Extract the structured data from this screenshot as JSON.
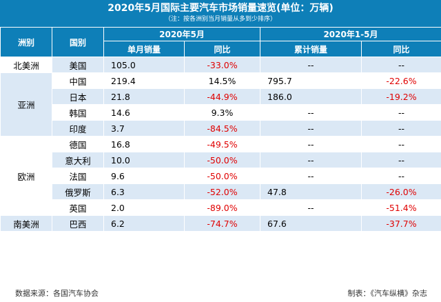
{
  "title": "2020年5月国际主要汽车市场销量速览(单位：万辆)",
  "subtitle": "（注：按各洲别当月销量从多到少排序）",
  "headers": {
    "continent": "洲别",
    "country": "国别",
    "period_month": "2020年5月",
    "period_ytd": "2020年1-5月",
    "month_sales": "单月销量",
    "month_yoy": "同比",
    "ytd_sales": "累计销量",
    "ytd_yoy": "同比"
  },
  "continents": {
    "north_america": "北美洲",
    "asia": "亚洲",
    "europe": "欧洲",
    "south_america": "南美洲"
  },
  "rows": [
    {
      "country": "美国",
      "month_sales": "105.0",
      "month_yoy": "-33.0%",
      "ytd_sales": "--",
      "ytd_yoy": "--"
    },
    {
      "country": "中国",
      "month_sales": "219.4",
      "month_yoy": "14.5%",
      "ytd_sales": "795.7",
      "ytd_yoy": "-22.6%"
    },
    {
      "country": "日本",
      "month_sales": "21.8",
      "month_yoy": "-44.9%",
      "ytd_sales": "186.0",
      "ytd_yoy": "-19.2%"
    },
    {
      "country": "韩国",
      "month_sales": "14.6",
      "month_yoy": "9.3%",
      "ytd_sales": "--",
      "ytd_yoy": "--"
    },
    {
      "country": "印度",
      "month_sales": "3.7",
      "month_yoy": "-84.5%",
      "ytd_sales": "--",
      "ytd_yoy": "--"
    },
    {
      "country": "德国",
      "month_sales": "16.8",
      "month_yoy": "-49.5%",
      "ytd_sales": "--",
      "ytd_yoy": "--"
    },
    {
      "country": "意大利",
      "month_sales": "10.0",
      "month_yoy": "-50.0%",
      "ytd_sales": "--",
      "ytd_yoy": "--"
    },
    {
      "country": "法国",
      "month_sales": "9.6",
      "month_yoy": "-50.0%",
      "ytd_sales": "--",
      "ytd_yoy": "--"
    },
    {
      "country": "俄罗斯",
      "month_sales": "6.3",
      "month_yoy": "-52.0%",
      "ytd_sales": "47.8",
      "ytd_yoy": "-26.0%"
    },
    {
      "country": "英国",
      "month_sales": "2.0",
      "month_yoy": "-89.0%",
      "ytd_sales": "--",
      "ytd_yoy": "-51.4%"
    },
    {
      "country": "巴西",
      "month_sales": "6.2",
      "month_yoy": "-74.7%",
      "ytd_sales": "67.6",
      "ytd_yoy": "-37.7%"
    }
  ],
  "footer": {
    "source": "数据来源：各国汽车协会",
    "made_by": "制表：《汽车纵横》杂志"
  },
  "colors": {
    "header_blue": "#0e7fb8",
    "row_light_blue": "#dbe8f5",
    "negative_red": "#e00000"
  }
}
